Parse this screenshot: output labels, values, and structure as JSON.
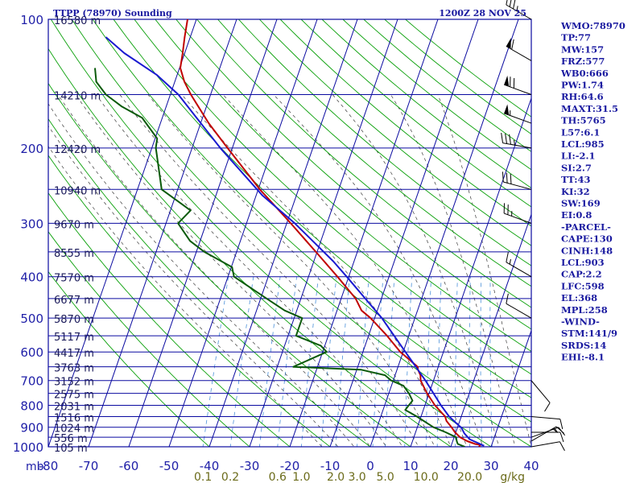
{
  "header": {
    "title": "TTPP (78970) Sounding",
    "datetime": "1200Z 28 NOV 25"
  },
  "chart_data": {
    "type": "line",
    "diagram": "skew-t log-p",
    "y_unit": "mb",
    "pressure_range": [
      1000,
      100
    ],
    "temperature_range": [
      -80,
      40
    ],
    "pressure_ticks": [
      100,
      200,
      300,
      400,
      500,
      600,
      700,
      800,
      900,
      1000
    ],
    "pressure_ticks_labeled": [
      100,
      200,
      300,
      400,
      500,
      600,
      700,
      800,
      900,
      1000
    ],
    "temperature_ticks": [
      -80,
      -70,
      -60,
      -50,
      -40,
      -30,
      -20,
      -10,
      0,
      10,
      20,
      30,
      40
    ],
    "temperature_tick_labels": [
      "-80",
      "-70",
      "-60",
      "-50",
      "-40",
      "-30",
      "-20",
      "-10",
      "0",
      "10",
      "20",
      "30",
      "40"
    ],
    "mixing_ratio_labels": [
      {
        "label": "0.1",
        "w": 0.1
      },
      {
        "label": "0.2",
        "w": 0.2
      },
      {
        "label": "0.6",
        "w": 0.6
      },
      {
        "label": "1.0",
        "w": 1.0
      },
      {
        "label": "2.0",
        "w": 2.0
      },
      {
        "label": "3.0",
        "w": 3.0
      },
      {
        "label": "5.0",
        "w": 5.0
      },
      {
        "label": "10.0",
        "w": 10.0
      },
      {
        "label": "20.0",
        "w": 20.0
      }
    ],
    "mixing_ratio_unit": "g/kg",
    "heights": [
      {
        "p": 100,
        "label": "16580 m"
      },
      {
        "p": 150,
        "label": "14210 m"
      },
      {
        "p": 200,
        "label": "12420 m"
      },
      {
        "p": 250,
        "label": "10940 m"
      },
      {
        "p": 300,
        "label": "9670 m"
      },
      {
        "p": 350,
        "label": "8555 m"
      },
      {
        "p": 400,
        "label": "7570 m"
      },
      {
        "p": 450,
        "label": "6677 m"
      },
      {
        "p": 500,
        "label": "5870 m"
      },
      {
        "p": 550,
        "label": "5117 m"
      },
      {
        "p": 600,
        "label": "4417 m"
      },
      {
        "p": 650,
        "label": "3763 m"
      },
      {
        "p": 700,
        "label": "3152 m"
      },
      {
        "p": 750,
        "label": "2575 m"
      },
      {
        "p": 800,
        "label": "2031 m"
      },
      {
        "p": 850,
        "label": "1516 m"
      },
      {
        "p": 900,
        "label": "1024 m"
      },
      {
        "p": 950,
        "label": "556 m"
      },
      {
        "p": 1000,
        "label": "105 m"
      }
    ],
    "series": [
      {
        "kind": "temperature",
        "color": "#c00000",
        "points": [
          [
            1000,
            27.0
          ],
          [
            990,
            27.2
          ],
          [
            985,
            25.8
          ],
          [
            970,
            23.6
          ],
          [
            950,
            21.5
          ],
          [
            925,
            19.8
          ],
          [
            900,
            18.5
          ],
          [
            870,
            16.7
          ],
          [
            850,
            16.0
          ],
          [
            800,
            12.5
          ],
          [
            750,
            9.5
          ],
          [
            700,
            6.8
          ],
          [
            680,
            6.3
          ],
          [
            660,
            5.2
          ],
          [
            650,
            4.9
          ],
          [
            600,
            -0.7
          ],
          [
            550,
            -5.4
          ],
          [
            500,
            -11.0
          ],
          [
            480,
            -13.9
          ],
          [
            450,
            -16.4
          ],
          [
            400,
            -22.8
          ],
          [
            350,
            -30.3
          ],
          [
            300,
            -39.0
          ],
          [
            250,
            -49.6
          ],
          [
            200,
            -61.2
          ],
          [
            175,
            -68.0
          ],
          [
            150,
            -74.9
          ],
          [
            140,
            -77.6
          ],
          [
            130,
            -79.8
          ],
          [
            120,
            -80.5
          ],
          [
            110,
            -81.4
          ],
          [
            100,
            -82.2
          ]
        ]
      },
      {
        "kind": "dewpoint",
        "color": "#0a5a0a",
        "points": [
          [
            1000,
            23.5
          ],
          [
            985,
            21.5
          ],
          [
            970,
            21.0
          ],
          [
            950,
            20.5
          ],
          [
            925,
            17.5
          ],
          [
            900,
            14.0
          ],
          [
            850,
            9.0
          ],
          [
            820,
            5.5
          ],
          [
            800,
            6.0
          ],
          [
            780,
            6.5
          ],
          [
            750,
            5.0
          ],
          [
            720,
            3.0
          ],
          [
            700,
            -0.5
          ],
          [
            680,
            -2.5
          ],
          [
            660,
            -9.0
          ],
          [
            650,
            -26.0
          ],
          [
            600,
            -19.0
          ],
          [
            580,
            -21.0
          ],
          [
            550,
            -28.0
          ],
          [
            500,
            -28.0
          ],
          [
            480,
            -33.0
          ],
          [
            450,
            -38.5
          ],
          [
            400,
            -48.5
          ],
          [
            380,
            -49.8
          ],
          [
            350,
            -58.0
          ],
          [
            330,
            -62.5
          ],
          [
            300,
            -67.0
          ],
          [
            280,
            -65.0
          ],
          [
            250,
            -74.0
          ],
          [
            200,
            -79.0
          ],
          [
            190,
            -79.5
          ],
          [
            170,
            -85.0
          ],
          [
            160,
            -91.0
          ],
          [
            150,
            -96.0
          ],
          [
            140,
            -99.5
          ],
          [
            130,
            -101.0
          ]
        ]
      },
      {
        "kind": "parcel",
        "color": "#1a1ad0",
        "points": [
          [
            995,
            28.2
          ],
          [
            960,
            24.0
          ],
          [
            930,
            22.2
          ],
          [
            903,
            21.0
          ],
          [
            850,
            17.0
          ],
          [
            800,
            14.0
          ],
          [
            700,
            8.0
          ],
          [
            598,
            0.4
          ],
          [
            500,
            -8.2
          ],
          [
            400,
            -20.5
          ],
          [
            368,
            -25.2
          ],
          [
            300,
            -38.0
          ],
          [
            258,
            -48.5
          ],
          [
            200,
            -63.0
          ],
          [
            150,
            -78.0
          ],
          [
            135,
            -85.0
          ],
          [
            120,
            -95.0
          ],
          [
            110,
            -101.0
          ]
        ]
      }
    ],
    "wind_barbs": [
      {
        "p": 1000,
        "speed_kt": 10,
        "dir_deg": 80
      },
      {
        "p": 970,
        "speed_kt": 15,
        "dir_deg": 60
      },
      {
        "p": 950,
        "speed_kt": 15,
        "dir_deg": 70
      },
      {
        "p": 925,
        "speed_kt": 10,
        "dir_deg": 90
      },
      {
        "p": 850,
        "speed_kt": 10,
        "dir_deg": 95
      },
      {
        "p": 700,
        "speed_kt": 10,
        "dir_deg": 140
      },
      {
        "p": 500,
        "speed_kt": 10,
        "dir_deg": 300
      },
      {
        "p": 400,
        "speed_kt": 15,
        "dir_deg": 300
      },
      {
        "p": 300,
        "speed_kt": 25,
        "dir_deg": 290
      },
      {
        "p": 250,
        "speed_kt": 30,
        "dir_deg": 285
      },
      {
        "p": 200,
        "speed_kt": 35,
        "dir_deg": 280
      },
      {
        "p": 175,
        "speed_kt": 55,
        "dir_deg": 290
      },
      {
        "p": 150,
        "speed_kt": 70,
        "dir_deg": 290
      },
      {
        "p": 125,
        "speed_kt": 60,
        "dir_deg": 300
      },
      {
        "p": 100,
        "speed_kt": 35,
        "dir_deg": 300
      }
    ]
  },
  "indices": [
    "WMO:78970",
    "TP:77",
    "MW:157",
    "FRZ:577",
    "WB0:666",
    "PW:1.74",
    "RH:64.6",
    "MAXT:31.5",
    "TH:5765",
    "L57:6.1",
    "LCL:985",
    "LI:-2.1",
    "SI:2.7",
    "TT:43",
    "KI:32",
    "SW:169",
    "EI:0.8",
    "-PARCEL-",
    "CAPE:130",
    "CINH:148",
    "LCL:903",
    "CAP:2.2",
    "LFC:598",
    "EL:368",
    "MPL:258",
    "-WIND-",
    "STM:141/9",
    "SRDS:14",
    "EHI:-8.1"
  ],
  "colors": {
    "isobar": "#0a0aa0",
    "isotherm": "#0a0aa0",
    "dry_adiabat": "#0aa00a",
    "moist_adiabat": "#3c3c3c",
    "mixing_ratio": "#4a90d9",
    "temperature": "#c00000",
    "dewpoint": "#0a5a0a",
    "parcel": "#1a1ad0",
    "labels": "#2020a8",
    "mix_label": "#6b6b1a"
  }
}
